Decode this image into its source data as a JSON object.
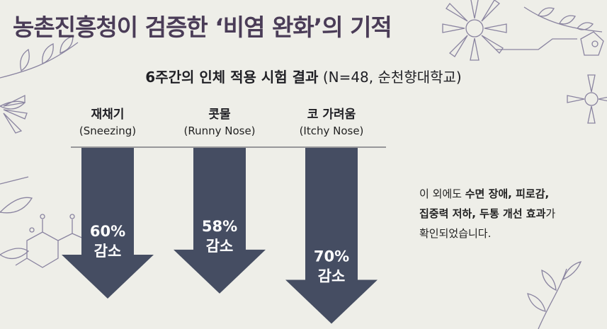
{
  "title": "농촌진흥청이 검증한 ‘비염 완화’의 기적",
  "subtitle": {
    "main": "6주간의 인체 적용 시험 결과",
    "detail": "(N=48, 순천향대학교)"
  },
  "colors": {
    "background": "#eeeee8",
    "arrow": "#454d62",
    "title": "#4a3c57",
    "decor": "#8a84a0"
  },
  "chart_data": {
    "type": "bar",
    "orientation": "downward-arrows",
    "categories": [
      {
        "ko": "재채기",
        "en": "(Sneezing)"
      },
      {
        "ko": "콧물",
        "en": "(Runny Nose)"
      },
      {
        "ko": "코 가려움",
        "en": "(Itchy Nose)"
      }
    ],
    "values": [
      60,
      58,
      70
    ],
    "unit": "%",
    "value_suffix": "감소",
    "data_labels": [
      "60%",
      "58%",
      "70%"
    ],
    "ylim": [
      0,
      75
    ]
  },
  "note": {
    "p1": "이 외에도 ",
    "b1": "수면 장애, 피로감,",
    "b2": "집중력 저하, 두통 개선 효과",
    "p2": "가",
    "p3": "확인되었습니다."
  }
}
